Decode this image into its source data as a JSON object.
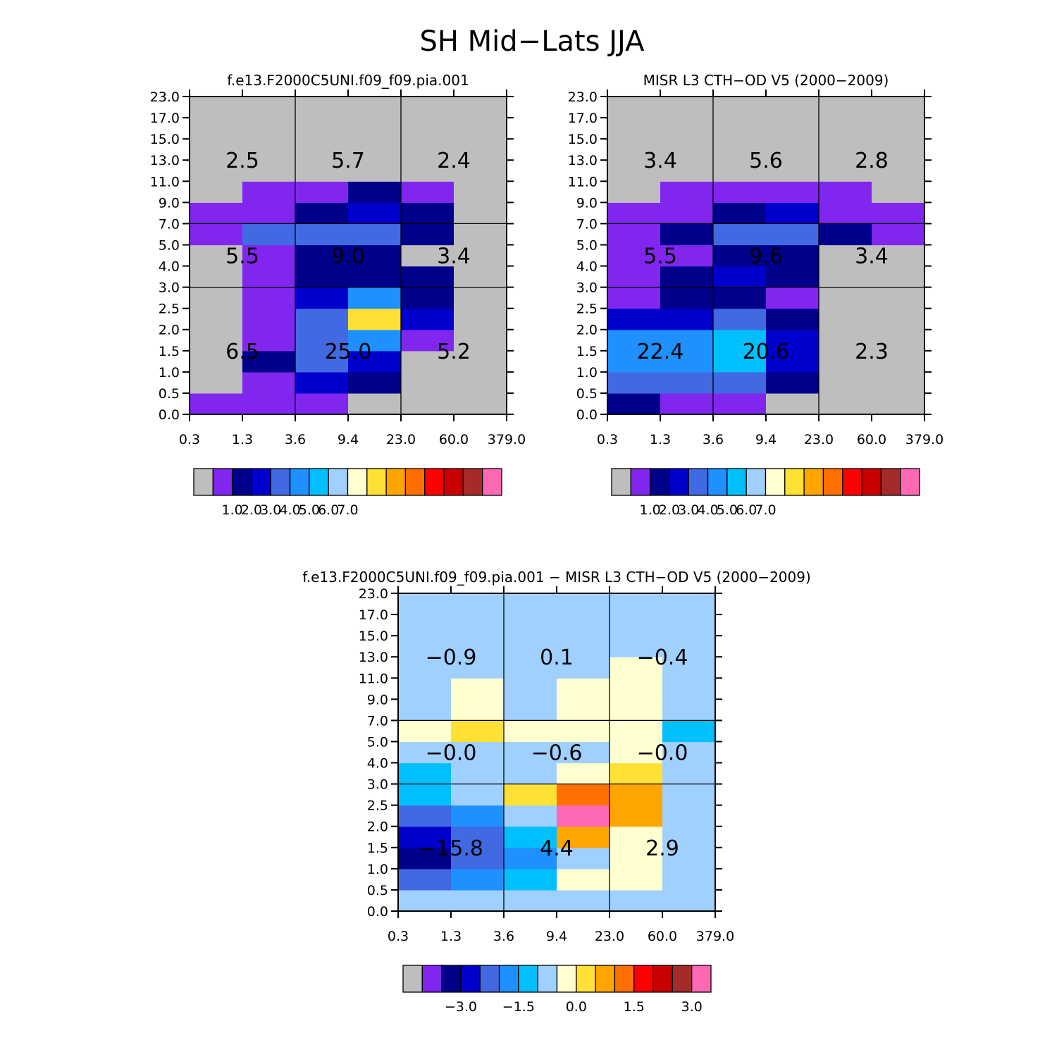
{
  "figure": {
    "title": "SH Mid−Lats JJA"
  },
  "palette": [
    "#bebebe",
    "#8026ef",
    "#00008b",
    "#0000cd",
    "#4169e1",
    "#1e90ff",
    "#00bfff",
    "#a0d0ff",
    "#ffffd0",
    "#ffe135",
    "#ffa500",
    "#ff7000",
    "#ff0000",
    "#c80000",
    "#a52a2a",
    "#ff69b4"
  ],
  "chart_data": [
    {
      "type": "heatmap",
      "title": "f.e13.F2000C5UNI.f09_f09.pia.001",
      "x_ticks": [
        "0.3",
        "1.3",
        "3.6",
        "9.4",
        "23.0",
        "60.0",
        "379.0"
      ],
      "y_ticks": [
        "0.0",
        "0.5",
        "1.0",
        "1.5",
        "2.0",
        "2.5",
        "3.0",
        "4.0",
        "5.0",
        "7.0",
        "9.0",
        "11.0",
        "13.0",
        "15.0",
        "17.0",
        "23.0"
      ],
      "cells_color_index": [
        [
          1,
          1,
          1,
          0,
          0,
          0
        ],
        [
          0,
          1,
          3,
          2,
          0,
          0
        ],
        [
          0,
          2,
          4,
          3,
          0,
          0
        ],
        [
          0,
          1,
          4,
          5,
          1,
          0
        ],
        [
          0,
          1,
          4,
          9,
          3,
          0
        ],
        [
          0,
          1,
          3,
          5,
          2,
          0
        ],
        [
          0,
          1,
          2,
          2,
          2,
          0
        ],
        [
          0,
          1,
          2,
          2,
          0,
          0
        ],
        [
          1,
          4,
          4,
          4,
          2,
          0
        ],
        [
          1,
          1,
          2,
          3,
          2,
          0
        ],
        [
          0,
          1,
          1,
          2,
          1,
          0
        ],
        [
          0,
          0,
          0,
          0,
          0,
          0
        ],
        [
          0,
          0,
          0,
          0,
          0,
          0
        ],
        [
          0,
          0,
          0,
          0,
          0,
          0
        ],
        [
          0,
          0,
          0,
          0,
          0,
          0
        ]
      ],
      "region_totals": [
        [
          "6.5",
          "25.0",
          "5.2"
        ],
        [
          "5.5",
          "9.0",
          "3.4"
        ],
        [
          "2.5",
          "5.7",
          "2.4"
        ]
      ],
      "colorbar_labels": [
        "1.0",
        "2.0",
        "3.0",
        "4.0",
        "5.0",
        "6.0",
        "7.0"
      ]
    },
    {
      "type": "heatmap",
      "title": "MISR L3 CTH−OD V5 (2000−2009)",
      "x_ticks": [
        "0.3",
        "1.3",
        "3.6",
        "9.4",
        "23.0",
        "60.0",
        "379.0"
      ],
      "y_ticks": [
        "0.0",
        "0.5",
        "1.0",
        "1.5",
        "2.0",
        "2.5",
        "3.0",
        "4.0",
        "5.0",
        "7.0",
        "9.0",
        "11.0",
        "13.0",
        "15.0",
        "17.0",
        "23.0"
      ],
      "cells_color_index": [
        [
          2,
          1,
          1,
          0,
          0,
          0
        ],
        [
          4,
          4,
          4,
          2,
          0,
          0
        ],
        [
          5,
          5,
          6,
          3,
          0,
          0
        ],
        [
          5,
          5,
          6,
          3,
          0,
          0
        ],
        [
          3,
          3,
          4,
          2,
          0,
          0
        ],
        [
          1,
          2,
          2,
          1,
          0,
          0
        ],
        [
          1,
          2,
          3,
          2,
          0,
          0
        ],
        [
          1,
          1,
          2,
          2,
          0,
          0
        ],
        [
          1,
          2,
          4,
          4,
          2,
          1
        ],
        [
          1,
          1,
          2,
          3,
          1,
          1
        ],
        [
          0,
          1,
          1,
          1,
          1,
          0
        ],
        [
          0,
          0,
          0,
          0,
          0,
          0
        ],
        [
          0,
          0,
          0,
          0,
          0,
          0
        ],
        [
          0,
          0,
          0,
          0,
          0,
          0
        ],
        [
          0,
          0,
          0,
          0,
          0,
          0
        ]
      ],
      "region_totals": [
        [
          "22.4",
          "20.6",
          "2.3"
        ],
        [
          "5.5",
          "9.6",
          "3.4"
        ],
        [
          "3.4",
          "5.6",
          "2.8"
        ]
      ],
      "colorbar_labels": [
        "1.0",
        "2.0",
        "3.0",
        "4.0",
        "5.0",
        "6.0",
        "7.0"
      ]
    },
    {
      "type": "heatmap",
      "title": "f.e13.F2000C5UNI.f09_f09.pia.001 − MISR L3 CTH−OD V5 (2000−2009)",
      "x_ticks": [
        "0.3",
        "1.3",
        "3.6",
        "9.4",
        "23.0",
        "60.0",
        "379.0"
      ],
      "y_ticks": [
        "0.0",
        "0.5",
        "1.0",
        "1.5",
        "2.0",
        "2.5",
        "3.0",
        "4.0",
        "5.0",
        "7.0",
        "9.0",
        "11.0",
        "13.0",
        "15.0",
        "17.0",
        "23.0"
      ],
      "cells_color_index": [
        [
          7,
          7,
          7,
          7,
          7,
          7
        ],
        [
          4,
          5,
          6,
          8,
          8,
          7
        ],
        [
          2,
          4,
          5,
          7,
          8,
          7
        ],
        [
          3,
          4,
          6,
          10,
          8,
          7
        ],
        [
          4,
          5,
          7,
          15,
          10,
          7
        ],
        [
          6,
          7,
          9,
          11,
          10,
          7
        ],
        [
          6,
          7,
          7,
          8,
          9,
          7
        ],
        [
          7,
          7,
          7,
          7,
          8,
          7
        ],
        [
          8,
          9,
          8,
          8,
          8,
          6
        ],
        [
          7,
          8,
          7,
          8,
          8,
          7
        ],
        [
          7,
          8,
          7,
          8,
          8,
          7
        ],
        [
          7,
          7,
          7,
          7,
          8,
          7
        ],
        [
          7,
          7,
          7,
          7,
          7,
          7
        ],
        [
          7,
          7,
          7,
          7,
          7,
          7
        ],
        [
          7,
          7,
          7,
          7,
          7,
          7
        ]
      ],
      "region_totals": [
        [
          "−15.8",
          "4.4",
          "2.9"
        ],
        [
          "−0.0",
          "−0.6",
          "−0.0"
        ],
        [
          "−0.9",
          "0.1",
          "−0.4"
        ]
      ],
      "colorbar_labels": [
        "−3.0",
        "−1.5",
        "0.0",
        "1.5",
        "3.0"
      ]
    }
  ]
}
